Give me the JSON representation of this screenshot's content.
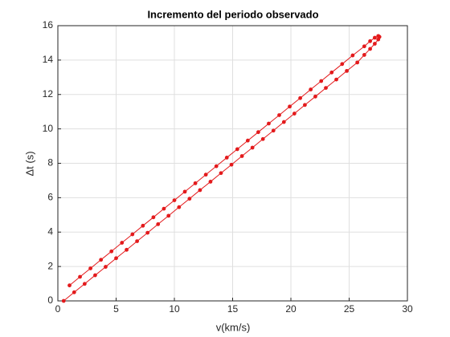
{
  "chart_data": {
    "type": "line",
    "title": "Incremento del periodo observado",
    "xlabel": "v(km/s)",
    "ylabel": "Δt (s)",
    "xlim": [
      0,
      30
    ],
    "xticks": [
      0,
      5,
      10,
      15,
      20,
      25,
      30
    ],
    "ylim": [
      0,
      16
    ],
    "yticks": [
      0,
      2,
      4,
      6,
      8,
      10,
      12,
      14,
      16
    ],
    "grid": true,
    "series": [
      {
        "color": "#e31a1c",
        "x": [
          0.5,
          1.4,
          2.3,
          3.2,
          4.1,
          5.0,
          5.9,
          6.8,
          7.7,
          8.6,
          9.5,
          10.4,
          11.3,
          12.2,
          13.1,
          14.0,
          14.9,
          15.8,
          16.7,
          17.6,
          18.5,
          19.4,
          20.3,
          21.2,
          22.1,
          23.0,
          23.9,
          24.8,
          25.7,
          26.3,
          26.8,
          27.2,
          27.5,
          27.6,
          27.5,
          27.2,
          26.8,
          26.3,
          25.3,
          24.4,
          23.5,
          22.6,
          21.7,
          20.8,
          19.9,
          19.0,
          18.1,
          17.2,
          16.3,
          15.4,
          14.5,
          13.6,
          12.7,
          11.8,
          10.9,
          10.0,
          9.1,
          8.2,
          7.3,
          6.4,
          5.5,
          4.6,
          3.7,
          2.8,
          1.9,
          1.0
        ],
        "values": [
          0,
          0.5,
          0.99,
          1.49,
          1.98,
          2.48,
          2.97,
          3.47,
          3.96,
          4.46,
          4.95,
          5.45,
          5.94,
          6.44,
          6.93,
          7.43,
          7.92,
          8.42,
          8.91,
          9.41,
          9.9,
          10.4,
          10.89,
          11.39,
          11.88,
          12.38,
          12.87,
          13.37,
          13.86,
          14.3,
          14.65,
          14.95,
          15.2,
          15.35,
          15.4,
          15.3,
          15.1,
          14.8,
          14.27,
          13.77,
          13.28,
          12.78,
          12.29,
          11.79,
          11.3,
          10.8,
          10.31,
          9.81,
          9.32,
          8.82,
          8.33,
          7.83,
          7.34,
          6.84,
          6.35,
          5.85,
          5.36,
          4.86,
          4.37,
          3.87,
          3.38,
          2.88,
          2.39,
          1.89,
          1.4,
          0.9
        ]
      }
    ]
  }
}
